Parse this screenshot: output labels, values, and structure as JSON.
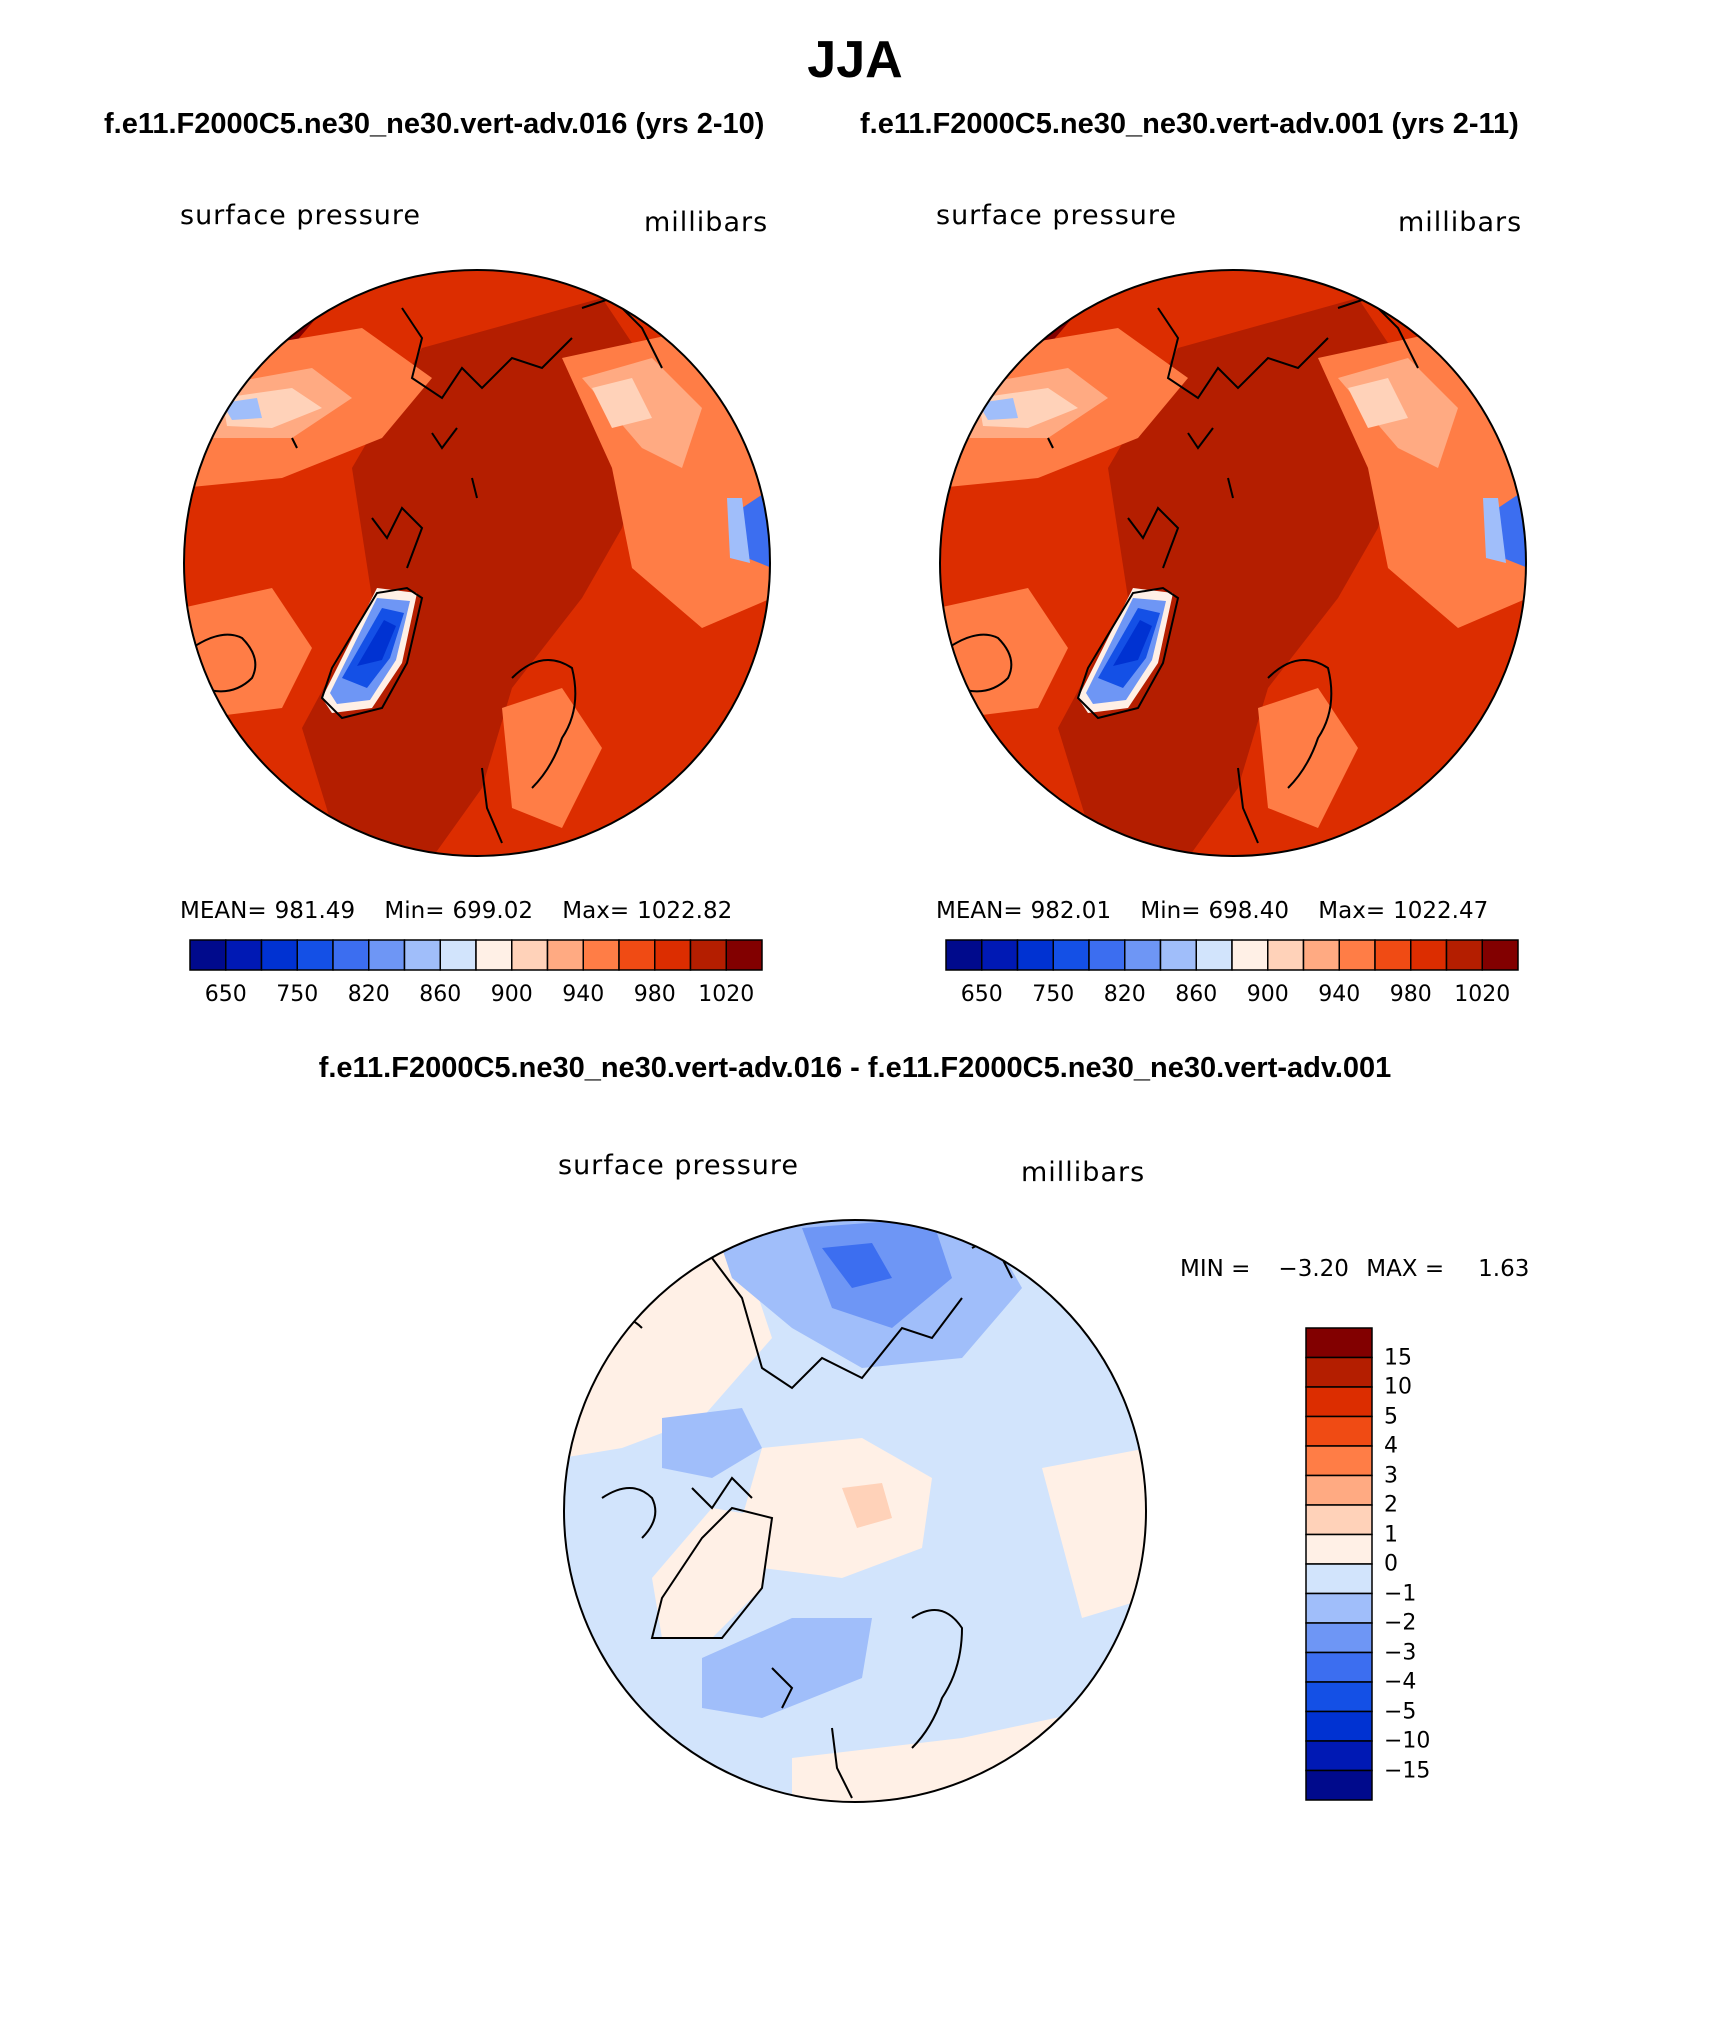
{
  "figure": {
    "title": "JJA",
    "case1_title": "f.e11.F2000C5.ne30_ne30.vert-adv.016 (yrs 2-10)",
    "case2_title": "f.e11.F2000C5.ne30_ne30.vert-adv.001 (yrs 2-11)",
    "diff_title": "f.e11.F2000C5.ne30_ne30.vert-adv.016 - f.e11.F2000C5.ne30_ne30.vert-adv.001"
  },
  "chart_data": [
    {
      "type": "heatmap",
      "projection": "north-polar-stereographic",
      "variable": "surface pressure",
      "units": "millibars",
      "stats": {
        "mean_label": "MEAN=",
        "mean": "981.49",
        "min_label": "Min=",
        "min": "699.02",
        "max_label": "Max=",
        "max": "1022.82"
      },
      "colorbar": {
        "orientation": "horizontal",
        "levels": [
          650,
          700,
          750,
          800,
          820,
          840,
          860,
          880,
          900,
          920,
          940,
          960,
          980,
          1000,
          1020
        ],
        "tick_labels": [
          "650",
          "750",
          "820",
          "860",
          "900",
          "940",
          "980",
          "1020"
        ],
        "colors": [
          "#000a8c",
          "#0019b4",
          "#0032d2",
          "#1450e6",
          "#3c6ef0",
          "#6e96f5",
          "#a0befa",
          "#d2e4fc",
          "#fff0e6",
          "#ffd2b9",
          "#ffaa82",
          "#ff7d46",
          "#f04b14",
          "#dc2d00",
          "#b41e00",
          "#820000"
        ]
      }
    },
    {
      "type": "heatmap",
      "projection": "north-polar-stereographic",
      "variable": "surface pressure",
      "units": "millibars",
      "stats": {
        "mean_label": "MEAN=",
        "mean": "982.01",
        "min_label": "Min=",
        "min": "698.40",
        "max_label": "Max=",
        "max": "1022.47"
      },
      "colorbar": {
        "orientation": "horizontal",
        "levels": [
          650,
          700,
          750,
          800,
          820,
          840,
          860,
          880,
          900,
          920,
          940,
          960,
          980,
          1000,
          1020
        ],
        "tick_labels": [
          "650",
          "750",
          "820",
          "860",
          "900",
          "940",
          "980",
          "1020"
        ],
        "colors": [
          "#000a8c",
          "#0019b4",
          "#0032d2",
          "#1450e6",
          "#3c6ef0",
          "#6e96f5",
          "#a0befa",
          "#d2e4fc",
          "#fff0e6",
          "#ffd2b9",
          "#ffaa82",
          "#ff7d46",
          "#f04b14",
          "#dc2d00",
          "#b41e00",
          "#820000"
        ]
      }
    },
    {
      "type": "heatmap",
      "projection": "north-polar-stereographic",
      "variable": "surface pressure",
      "units": "millibars",
      "stats": {
        "min_label": "MIN =",
        "min": "−3.20",
        "max_label": "MAX =",
        "max": "1.63"
      },
      "colorbar": {
        "orientation": "vertical",
        "levels": [
          15,
          10,
          5,
          4,
          3,
          2,
          1,
          0,
          -1,
          -2,
          -3,
          -4,
          -5,
          -10,
          -15
        ],
        "tick_labels": [
          "15",
          "10",
          "5",
          "4",
          "3",
          "2",
          "1",
          "0",
          "−1",
          "−2",
          "−3",
          "−4",
          "−5",
          "−10",
          "−15"
        ],
        "colors_top_to_bottom": [
          "#820000",
          "#b41e00",
          "#dc2d00",
          "#f04b14",
          "#ff7d46",
          "#ffaa82",
          "#ffd2b9",
          "#fff0e6",
          "#d2e4fc",
          "#a0befa",
          "#6e96f5",
          "#3c6ef0",
          "#1450e6",
          "#0032d2",
          "#0019b4",
          "#000a8c"
        ]
      }
    }
  ]
}
